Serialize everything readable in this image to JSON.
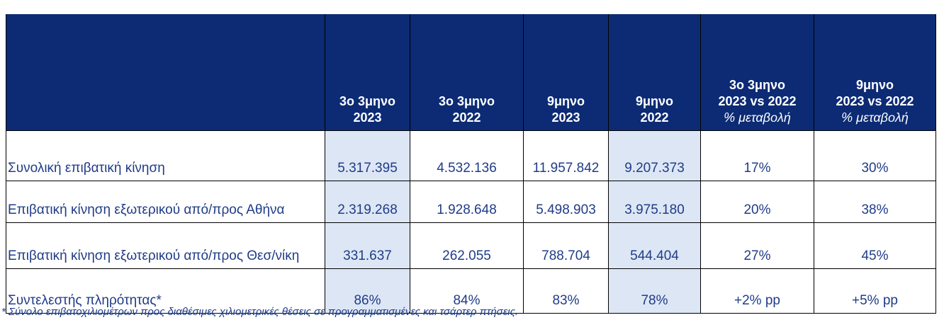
{
  "table": {
    "header": [
      {
        "lines": [
          "3ο 3μηνο",
          "2023"
        ]
      },
      {
        "lines": [
          "3ο 3μηνο",
          "2022"
        ]
      },
      {
        "lines": [
          "9μηνο",
          "2023"
        ]
      },
      {
        "lines": [
          "9μηνο",
          "2022"
        ]
      },
      {
        "lines": [
          "3ο 3μηνο",
          "2023 vs 2022"
        ],
        "note": "% μεταβολή"
      },
      {
        "lines": [
          "9μηνο",
          "2023 vs 2022"
        ],
        "note": "% μεταβολή"
      }
    ],
    "rows": [
      [
        "Συνολική επιβατική κίνηση",
        "5.317.395",
        "4.532.136",
        "11.957.842",
        "9.207.373",
        "17%",
        "30%"
      ],
      [
        "Επιβατική κίνηση εξωτερικού από/προς Αθήνα",
        "2.319.268",
        "1.928.648",
        "5.498.903",
        "3.975.180",
        "20%",
        "38%"
      ],
      [
        "Επιβατική κίνηση εξωτερικού από/προς Θεσ/νίκη",
        "331.637",
        "262.055",
        "788.704",
        "544.404",
        "27%",
        "45%"
      ],
      [
        "Συντελεστής πληρότητας*",
        "86%",
        "84%",
        "83%",
        "78%",
        "+2% pp",
        "+5% pp"
      ]
    ]
  },
  "footnote": "* Σύνολο επιβατοχιλιομέτρων προς διαθέσιμες χιλιομετρικές θέσεις σε προγραμματισμένες και τσάρτερ πτήσεις."
}
